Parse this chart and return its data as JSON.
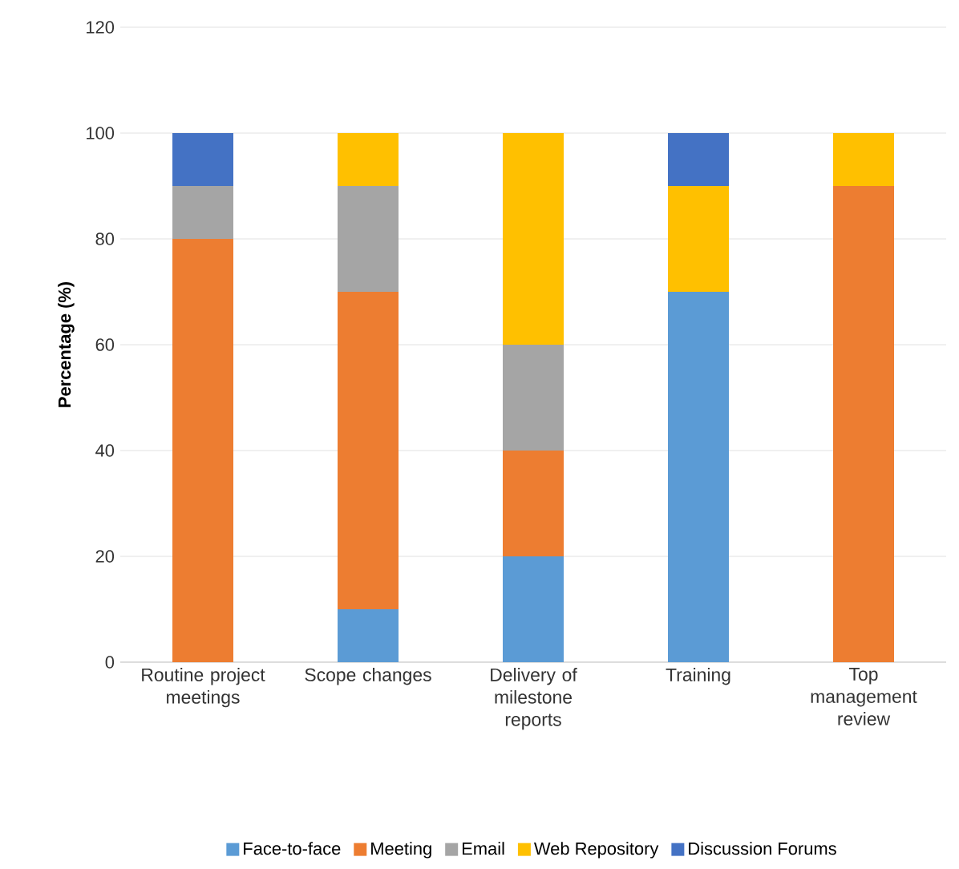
{
  "chart_data": {
    "type": "bar",
    "stacked": true,
    "ylabel": "Percentage (%)",
    "categories": [
      "Routine project meetings",
      "Scope changes",
      "Delivery of milestone reports",
      "Training",
      "Top management review"
    ],
    "series": [
      {
        "name": "Face-to-face",
        "color": "#5b9bd5",
        "values": [
          0,
          10,
          20,
          70,
          0
        ]
      },
      {
        "name": "Meeting",
        "color": "#ed7d31",
        "values": [
          80,
          60,
          20,
          0,
          90
        ]
      },
      {
        "name": "Email",
        "color": "#a5a5a5",
        "values": [
          10,
          20,
          20,
          0,
          0
        ]
      },
      {
        "name": "Web Repository",
        "color": "#ffc000",
        "values": [
          0,
          10,
          40,
          20,
          10
        ]
      },
      {
        "name": "Discussion Forums",
        "color": "#4472c4",
        "values": [
          10,
          0,
          0,
          10,
          0
        ]
      }
    ],
    "ylim": [
      0,
      120
    ],
    "yticks": [
      0,
      20,
      40,
      60,
      80,
      100,
      120
    ],
    "grid": "y",
    "legend": "bottom"
  }
}
